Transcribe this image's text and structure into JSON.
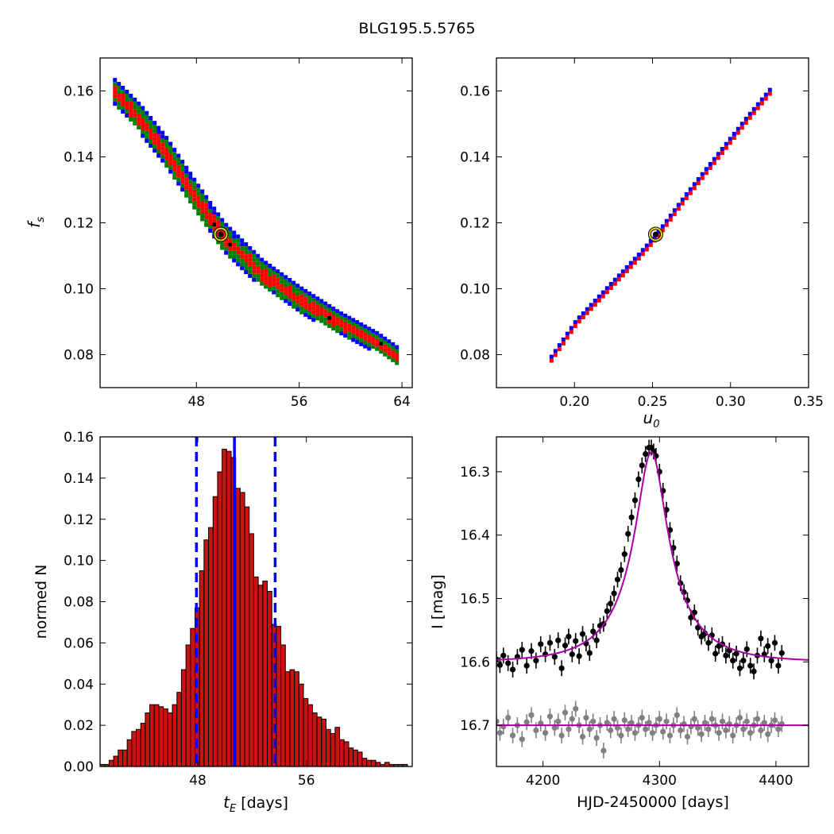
{
  "figure_title": "BLG195.5.5765",
  "chart_data": [
    {
      "panel": "top-left",
      "type": "heatmap",
      "title": "",
      "xlabel": "",
      "ylabel_symbol": "f",
      "ylabel_sub": "s",
      "xlim": [
        40.5,
        64.8
      ],
      "ylim": [
        0.07,
        0.17
      ],
      "xticks": [
        48,
        56,
        64
      ],
      "xtick_labels": [
        "48",
        "56",
        "64"
      ],
      "yticks": [
        0.08,
        0.1,
        0.12,
        0.14,
        0.16
      ],
      "ytick_labels": [
        "0.08",
        "0.10",
        "0.12",
        "0.14",
        "0.16"
      ],
      "region_colors": {
        "outer": "#0000ff",
        "middle": "#008000",
        "inner": "#ff0000",
        "best": "#000000"
      },
      "ridge": [
        [
          41.5,
          0.16
        ],
        [
          43.5,
          0.152
        ],
        [
          45.5,
          0.142
        ],
        [
          48.0,
          0.127
        ],
        [
          50.0,
          0.116
        ],
        [
          53.0,
          0.105
        ],
        [
          56.0,
          0.097
        ],
        [
          59.0,
          0.09
        ],
        [
          62.0,
          0.084
        ],
        [
          63.5,
          0.08
        ]
      ],
      "best_fit": {
        "x": 49.9,
        "y": 0.1165
      }
    },
    {
      "panel": "top-right",
      "type": "heatmap",
      "title": "",
      "xlabel_symbol": "u",
      "xlabel_sub": "0",
      "ylabel": "",
      "xlim": [
        0.15,
        0.35
      ],
      "ylim": [
        0.07,
        0.17
      ],
      "xticks": [
        0.2,
        0.25,
        0.3,
        0.35
      ],
      "xtick_labels": [
        "0.20",
        "0.25",
        "0.30",
        "0.35"
      ],
      "yticks": [
        0.08,
        0.1,
        0.12,
        0.14,
        0.16
      ],
      "ytick_labels": [
        "0.08",
        "0.10",
        "0.12",
        "0.14",
        "0.16"
      ],
      "region_colors": {
        "outer": "#0000ff",
        "middle": "#008000",
        "inner": "#ff0000",
        "best": "#000000"
      },
      "ridge": [
        [
          0.184,
          0.079
        ],
        [
          0.2,
          0.09
        ],
        [
          0.22,
          0.1
        ],
        [
          0.24,
          0.11
        ],
        [
          0.252,
          0.1165
        ],
        [
          0.27,
          0.128
        ],
        [
          0.29,
          0.14
        ],
        [
          0.31,
          0.152
        ],
        [
          0.324,
          0.16
        ]
      ],
      "best_fit": {
        "x": 0.252,
        "y": 0.1165
      }
    },
    {
      "panel": "bottom-left",
      "type": "bar",
      "title": "",
      "xlabel_symbol": "t",
      "xlabel_sub": "E",
      "xlabel_unit": "[days]",
      "ylabel": "normed N",
      "xlim": [
        40.8,
        63.8
      ],
      "ylim": [
        0,
        0.16
      ],
      "xticks": [
        48,
        56
      ],
      "xtick_labels": [
        "48",
        "56"
      ],
      "yticks": [
        0.0,
        0.02,
        0.04,
        0.06,
        0.08,
        0.1,
        0.12,
        0.14,
        0.16
      ],
      "ytick_labels": [
        "0.00",
        "0.02",
        "0.04",
        "0.06",
        "0.08",
        "0.10",
        "0.12",
        "0.14",
        "0.16"
      ],
      "bar_color": "#cc1111",
      "bins_start": 40.8,
      "bin_width": 0.333,
      "values": [
        0.001,
        0.001,
        0.003,
        0.005,
        0.008,
        0.008,
        0.013,
        0.017,
        0.018,
        0.021,
        0.026,
        0.03,
        0.03,
        0.029,
        0.028,
        0.026,
        0.03,
        0.036,
        0.047,
        0.059,
        0.067,
        0.077,
        0.095,
        0.11,
        0.116,
        0.131,
        0.143,
        0.154,
        0.153,
        0.15,
        0.135,
        0.133,
        0.126,
        0.113,
        0.092,
        0.088,
        0.09,
        0.085,
        0.069,
        0.068,
        0.059,
        0.046,
        0.047,
        0.046,
        0.04,
        0.033,
        0.03,
        0.026,
        0.024,
        0.023,
        0.018,
        0.016,
        0.019,
        0.013,
        0.012,
        0.009,
        0.008,
        0.007,
        0.004,
        0.003,
        0.003,
        0.002,
        0.001,
        0.002,
        0.001,
        0.001,
        0.001,
        0.001
      ],
      "median_line": 50.7,
      "interval_lines": [
        47.9,
        53.7
      ],
      "line_color": "#0000ff"
    },
    {
      "panel": "bottom-right",
      "type": "scatter",
      "title": "",
      "xlabel": "HJD-2450000 [days]",
      "ylabel": "I [mag]",
      "xlim": [
        4160,
        4428
      ],
      "ylim": [
        16.765,
        16.245
      ],
      "xticks": [
        4200,
        4300,
        4400
      ],
      "xtick_labels": [
        "4200",
        "4300",
        "4400"
      ],
      "yticks": [
        16.3,
        16.4,
        16.5,
        16.6,
        16.7
      ],
      "ytick_labels": [
        "16.3",
        "16.4",
        "16.5",
        "16.6",
        "16.7"
      ],
      "model": {
        "t0": 4293,
        "tE": 50.7,
        "u0": 0.252,
        "fs": 0.1165,
        "baseline": 16.6,
        "color": "#aa00aa"
      },
      "residual_baseline": 16.7,
      "series": [
        {
          "color": "#000000",
          "points": [
            [
              4160,
              16.596
            ],
            [
              4163,
              16.605
            ],
            [
              4166,
              16.59
            ],
            [
              4170,
              16.602
            ],
            [
              4174,
              16.612
            ],
            [
              4178,
              16.592
            ],
            [
              4182,
              16.581
            ],
            [
              4186,
              16.606
            ],
            [
              4190,
              16.583
            ],
            [
              4194,
              16.598
            ],
            [
              4198,
              16.572
            ],
            [
              4202,
              16.588
            ],
            [
              4206,
              16.57
            ],
            [
              4210,
              16.592
            ],
            [
              4213,
              16.566
            ],
            [
              4216,
              16.61
            ],
            [
              4219,
              16.574
            ],
            [
              4222,
              16.56
            ],
            [
              4225,
              16.588
            ],
            [
              4228,
              16.567
            ],
            [
              4231,
              16.591
            ],
            [
              4234,
              16.556
            ],
            [
              4237,
              16.571
            ],
            [
              4240,
              16.586
            ],
            [
              4243,
              16.552
            ],
            [
              4246,
              16.566
            ],
            [
              4249,
              16.543
            ],
            [
              4252,
              16.54
            ],
            [
              4255,
              16.52
            ],
            [
              4258,
              16.508
            ],
            [
              4261,
              16.492
            ],
            [
              4264,
              16.47
            ],
            [
              4267,
              16.455
            ],
            [
              4270,
              16.43
            ],
            [
              4273,
              16.398
            ],
            [
              4276,
              16.372
            ],
            [
              4279,
              16.345
            ],
            [
              4282,
              16.312
            ],
            [
              4285,
              16.29
            ],
            [
              4288,
              16.272
            ],
            [
              4291,
              16.262
            ],
            [
              4293,
              16.262
            ],
            [
              4295,
              16.268
            ],
            [
              4297,
              16.275
            ],
            [
              4300,
              16.3
            ],
            [
              4303,
              16.33
            ],
            [
              4306,
              16.36
            ],
            [
              4309,
              16.392
            ],
            [
              4312,
              16.42
            ],
            [
              4315,
              16.445
            ],
            [
              4318,
              16.476
            ],
            [
              4321,
              16.49
            ],
            [
              4324,
              16.503
            ],
            [
              4327,
              16.53
            ],
            [
              4330,
              16.522
            ],
            [
              4333,
              16.546
            ],
            [
              4336,
              16.56
            ],
            [
              4339,
              16.555
            ],
            [
              4342,
              16.57
            ],
            [
              4345,
              16.558
            ],
            [
              4348,
              16.587
            ],
            [
              4351,
              16.575
            ],
            [
              4354,
              16.572
            ],
            [
              4357,
              16.59
            ],
            [
              4360,
              16.582
            ],
            [
              4363,
              16.598
            ],
            [
              4366,
              16.587
            ],
            [
              4369,
              16.61
            ],
            [
              4372,
              16.598
            ],
            [
              4375,
              16.58
            ],
            [
              4378,
              16.606
            ],
            [
              4381,
              16.615
            ],
            [
              4384,
              16.59
            ],
            [
              4387,
              16.563
            ],
            [
              4390,
              16.588
            ],
            [
              4393,
              16.575
            ],
            [
              4396,
              16.598
            ],
            [
              4399,
              16.57
            ],
            [
              4402,
              16.606
            ],
            [
              4405,
              16.586
            ]
          ]
        },
        {
          "color": "#808080",
          "points": [
            [
              4160,
              16.694
            ],
            [
              4163,
              16.712
            ],
            [
              4166,
              16.702
            ],
            [
              4170,
              16.688
            ],
            [
              4174,
              16.716
            ],
            [
              4178,
              16.7
            ],
            [
              4182,
              16.722
            ],
            [
              4186,
              16.695
            ],
            [
              4190,
              16.684
            ],
            [
              4194,
              16.708
            ],
            [
              4198,
              16.697
            ],
            [
              4202,
              16.712
            ],
            [
              4206,
              16.686
            ],
            [
              4210,
              16.704
            ],
            [
              4213,
              16.694
            ],
            [
              4216,
              16.716
            ],
            [
              4219,
              16.68
            ],
            [
              4222,
              16.706
            ],
            [
              4225,
              16.69
            ],
            [
              4228,
              16.674
            ],
            [
              4231,
              16.7
            ],
            [
              4234,
              16.718
            ],
            [
              4237,
              16.688
            ],
            [
              4240,
              16.706
            ],
            [
              4243,
              16.694
            ],
            [
              4246,
              16.72
            ],
            [
              4249,
              16.7
            ],
            [
              4252,
              16.74
            ],
            [
              4255,
              16.696
            ],
            [
              4258,
              16.708
            ],
            [
              4261,
              16.69
            ],
            [
              4264,
              16.704
            ],
            [
              4267,
              16.716
            ],
            [
              4270,
              16.692
            ],
            [
              4273,
              16.706
            ],
            [
              4276,
              16.696
            ],
            [
              4279,
              16.712
            ],
            [
              4282,
              16.7
            ],
            [
              4285,
              16.688
            ],
            [
              4288,
              16.706
            ],
            [
              4291,
              16.696
            ],
            [
              4294,
              16.712
            ],
            [
              4297,
              16.7
            ],
            [
              4300,
              16.69
            ],
            [
              4303,
              16.71
            ],
            [
              4306,
              16.694
            ],
            [
              4309,
              16.716
            ],
            [
              4312,
              16.7
            ],
            [
              4315,
              16.684
            ],
            [
              4318,
              16.708
            ],
            [
              4321,
              16.698
            ],
            [
              4324,
              16.718
            ],
            [
              4327,
              16.702
            ],
            [
              4330,
              16.69
            ],
            [
              4333,
              16.704
            ],
            [
              4336,
              16.714
            ],
            [
              4339,
              16.696
            ],
            [
              4342,
              16.706
            ],
            [
              4345,
              16.69
            ],
            [
              4348,
              16.7
            ],
            [
              4351,
              16.712
            ],
            [
              4354,
              16.694
            ],
            [
              4357,
              16.708
            ],
            [
              4360,
              16.698
            ],
            [
              4363,
              16.716
            ],
            [
              4366,
              16.7
            ],
            [
              4369,
              16.688
            ],
            [
              4372,
              16.706
            ],
            [
              4375,
              16.694
            ],
            [
              4378,
              16.712
            ],
            [
              4381,
              16.7
            ],
            [
              4384,
              16.69
            ],
            [
              4387,
              16.708
            ],
            [
              4390,
              16.696
            ],
            [
              4393,
              16.714
            ],
            [
              4396,
              16.7
            ],
            [
              4399,
              16.692
            ],
            [
              4402,
              16.706
            ],
            [
              4405,
              16.698
            ]
          ]
        }
      ]
    }
  ]
}
